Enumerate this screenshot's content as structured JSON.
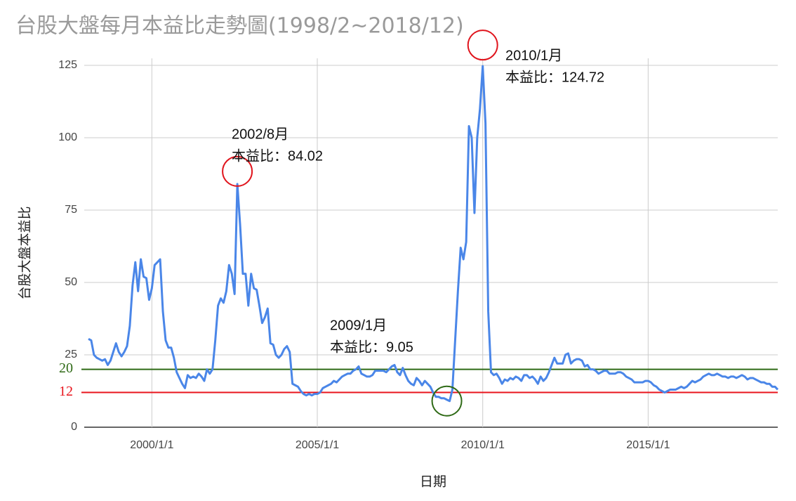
{
  "chart_data": {
    "type": "line",
    "title": "台股大盤每月本益比走勢圖(1998/2~2018/12)",
    "x_label": "日期",
    "y_label": "台股大盤本益比",
    "color": "#4a86e8",
    "grid": true,
    "x": [
      "1998/2/1",
      "1998/3/1",
      "1998/4/1",
      "1998/5/1",
      "1998/6/1",
      "1998/7/1",
      "1998/8/1",
      "1998/9/1",
      "1998/10/1",
      "1998/11/1",
      "1998/12/1",
      "1999/1/1",
      "1999/2/1",
      "1999/3/1",
      "1999/4/1",
      "1999/5/1",
      "1999/6/1",
      "1999/7/1",
      "1999/8/1",
      "1999/9/1",
      "1999/10/1",
      "1999/11/1",
      "1999/12/1",
      "2000/1/1",
      "2000/2/1",
      "2000/3/1",
      "2000/4/1",
      "2000/5/1",
      "2000/6/1",
      "2000/7/1",
      "2000/8/1",
      "2000/9/1",
      "2000/10/1",
      "2000/11/1",
      "2000/12/1",
      "2001/1/1",
      "2001/2/1",
      "2001/3/1",
      "2001/4/1",
      "2001/5/1",
      "2001/6/1",
      "2001/7/1",
      "2001/8/1",
      "2001/9/1",
      "2001/10/1",
      "2001/11/1",
      "2001/12/1",
      "2002/1/1",
      "2002/2/1",
      "2002/3/1",
      "2002/4/1",
      "2002/5/1",
      "2002/6/1",
      "2002/7/1",
      "2002/8/1",
      "2002/9/1",
      "2002/10/1",
      "2002/11/1",
      "2002/12/1",
      "2003/1/1",
      "2003/2/1",
      "2003/3/1",
      "2003/4/1",
      "2003/5/1",
      "2003/6/1",
      "2003/7/1",
      "2003/8/1",
      "2003/9/1",
      "2003/10/1",
      "2003/11/1",
      "2003/12/1",
      "2004/1/1",
      "2004/2/1",
      "2004/3/1",
      "2004/4/1",
      "2004/5/1",
      "2004/6/1",
      "2004/7/1",
      "2004/8/1",
      "2004/9/1",
      "2004/10/1",
      "2004/11/1",
      "2004/12/1",
      "2005/1/1",
      "2005/2/1",
      "2005/3/1",
      "2005/4/1",
      "2005/5/1",
      "2005/6/1",
      "2005/7/1",
      "2005/8/1",
      "2005/9/1",
      "2005/10/1",
      "2005/11/1",
      "2005/12/1",
      "2006/1/1",
      "2006/2/1",
      "2006/3/1",
      "2006/4/1",
      "2006/5/1",
      "2006/6/1",
      "2006/7/1",
      "2006/8/1",
      "2006/9/1",
      "2006/10/1",
      "2006/11/1",
      "2006/12/1",
      "2007/1/1",
      "2007/2/1",
      "2007/3/1",
      "2007/4/1",
      "2007/5/1",
      "2007/6/1",
      "2007/7/1",
      "2007/8/1",
      "2007/9/1",
      "2007/10/1",
      "2007/11/1",
      "2007/12/1",
      "2008/1/1",
      "2008/2/1",
      "2008/3/1",
      "2008/4/1",
      "2008/5/1",
      "2008/6/1",
      "2008/7/1",
      "2008/8/1",
      "2008/9/1",
      "2008/10/1",
      "2008/11/1",
      "2008/12/1",
      "2009/1/1",
      "2009/2/1",
      "2009/3/1",
      "2009/4/1",
      "2009/5/1",
      "2009/6/1",
      "2009/7/1",
      "2009/8/1",
      "2009/9/1",
      "2009/10/1",
      "2009/11/1",
      "2009/12/1",
      "2010/1/1",
      "2010/2/1",
      "2010/3/1",
      "2010/4/1",
      "2010/5/1",
      "2010/6/1",
      "2010/7/1",
      "2010/8/1",
      "2010/9/1",
      "2010/10/1",
      "2010/11/1",
      "2010/12/1",
      "2011/1/1",
      "2011/2/1",
      "2011/3/1",
      "2011/4/1",
      "2011/5/1",
      "2011/6/1",
      "2011/7/1",
      "2011/8/1",
      "2011/9/1",
      "2011/10/1",
      "2011/11/1",
      "2011/12/1",
      "2012/1/1",
      "2012/2/1",
      "2012/3/1",
      "2012/4/1",
      "2012/5/1",
      "2012/6/1",
      "2012/7/1",
      "2012/8/1",
      "2012/9/1",
      "2012/10/1",
      "2012/11/1",
      "2012/12/1",
      "2013/1/1",
      "2013/2/1",
      "2013/3/1",
      "2013/4/1",
      "2013/5/1",
      "2013/6/1",
      "2013/7/1",
      "2013/8/1",
      "2013/9/1",
      "2013/10/1",
      "2013/11/1",
      "2013/12/1",
      "2014/1/1",
      "2014/2/1",
      "2014/3/1",
      "2014/4/1",
      "2014/5/1",
      "2014/6/1",
      "2014/7/1",
      "2014/8/1",
      "2014/9/1",
      "2014/10/1",
      "2014/11/1",
      "2014/12/1",
      "2015/1/1",
      "2015/2/1",
      "2015/3/1",
      "2015/4/1",
      "2015/5/1",
      "2015/6/1",
      "2015/7/1",
      "2015/8/1",
      "2015/9/1",
      "2015/10/1",
      "2015/11/1",
      "2015/12/1",
      "2016/1/1",
      "2016/2/1",
      "2016/3/1",
      "2016/4/1",
      "2016/5/1",
      "2016/6/1",
      "2016/7/1",
      "2016/8/1",
      "2016/9/1",
      "2016/10/1",
      "2016/11/1",
      "2016/12/1",
      "2017/1/1",
      "2017/2/1",
      "2017/3/1",
      "2017/4/1",
      "2017/5/1",
      "2017/6/1",
      "2017/7/1",
      "2017/8/1",
      "2017/9/1",
      "2017/10/1",
      "2017/11/1",
      "2017/12/1",
      "2018/1/1",
      "2018/2/1",
      "2018/3/1",
      "2018/4/1",
      "2018/5/1",
      "2018/6/1",
      "2018/7/1",
      "2018/8/1",
      "2018/9/1",
      "2018/10/1",
      "2018/11/1",
      "2018/12/1"
    ],
    "values": [
      30.5,
      30,
      25,
      24,
      23.5,
      23,
      23.5,
      21.5,
      23,
      26,
      29,
      26,
      24.5,
      26,
      28,
      35,
      49,
      57,
      47,
      58,
      52,
      51.5,
      44,
      48,
      56,
      57,
      58,
      40,
      30,
      27.5,
      27.5,
      24,
      19,
      17,
      15,
      13.5,
      18,
      17,
      17.5,
      17,
      18.5,
      17.5,
      16,
      20,
      18.5,
      20,
      30,
      42,
      44.5,
      43,
      47,
      56,
      53,
      46,
      84.02,
      70,
      53,
      53,
      42,
      53,
      48,
      47.5,
      42,
      36,
      38,
      41,
      29,
      28.5,
      25,
      24,
      25,
      27,
      28,
      26,
      15,
      14.5,
      14,
      12.5,
      11.5,
      11,
      11.5,
      11,
      11.5,
      11.5,
      12,
      13.5,
      14,
      14.5,
      15,
      16,
      15.5,
      16.5,
      17.5,
      18,
      18.5,
      18.5,
      19.5,
      20,
      21,
      18.5,
      18,
      17.5,
      17.5,
      18,
      19.5,
      19.5,
      19.5,
      19.5,
      19,
      20,
      21,
      21.5,
      19,
      18,
      20.5,
      18,
      16,
      15,
      14.5,
      17,
      16,
      14.5,
      16,
      15,
      14,
      12,
      10.5,
      10.5,
      10,
      10,
      9.5,
      9.05,
      13,
      30,
      47,
      62,
      58,
      64,
      104,
      100,
      74,
      100,
      110,
      124.72,
      105,
      40,
      19,
      18,
      18.5,
      17,
      15,
      16.5,
      16,
      17,
      16.5,
      17.5,
      17,
      16,
      18,
      18,
      17,
      17.5,
      16.5,
      15,
      17.5,
      16,
      17,
      19,
      21.5,
      24,
      22,
      22,
      22,
      25,
      25.5,
      22,
      23,
      23.5,
      23.5,
      23,
      21,
      21.5,
      20,
      20,
      19.5,
      18.5,
      19,
      19.5,
      19.5,
      18.5,
      18.5,
      18.5,
      19,
      19,
      18.5,
      17.5,
      17,
      16.5,
      15.5,
      15.5,
      15.5,
      15.5,
      16,
      16,
      15.5,
      14.5,
      14,
      13,
      12.5,
      12,
      12.5,
      13,
      13,
      13,
      13.5,
      14,
      13.5,
      14,
      15,
      16,
      15.5,
      16,
      16.5,
      17.5,
      18,
      18.5,
      18,
      18,
      18.5,
      18,
      17.5,
      17.5,
      17,
      17.5,
      17.5,
      17,
      17.5,
      18,
      17.5,
      16.5,
      17,
      17,
      16.5,
      16,
      15.5,
      15.5,
      15,
      15,
      14,
      14,
      13
    ],
    "xlim": [
      "1998/2/1",
      "2018/12/1"
    ],
    "xticks": [
      "2000/1/1",
      "2005/1/1",
      "2010/1/1",
      "2015/1/1"
    ],
    "ylim": [
      0,
      125
    ],
    "yticks": [
      0,
      25,
      50,
      75,
      100,
      125
    ],
    "reference_lines": [
      {
        "value": 20,
        "color": "#2f6a16"
      },
      {
        "value": 12,
        "color": "#e8141c"
      }
    ],
    "annotations": [
      {
        "title": "2002/8月",
        "text": "本益比：84.02",
        "color": "#e0141c"
      },
      {
        "title": "2010/1月",
        "text": "本益比：124.72",
        "color": "#e0141c"
      },
      {
        "title": "2009/1月",
        "text": "本益比：9.05",
        "color": "#2f6a16"
      }
    ]
  }
}
